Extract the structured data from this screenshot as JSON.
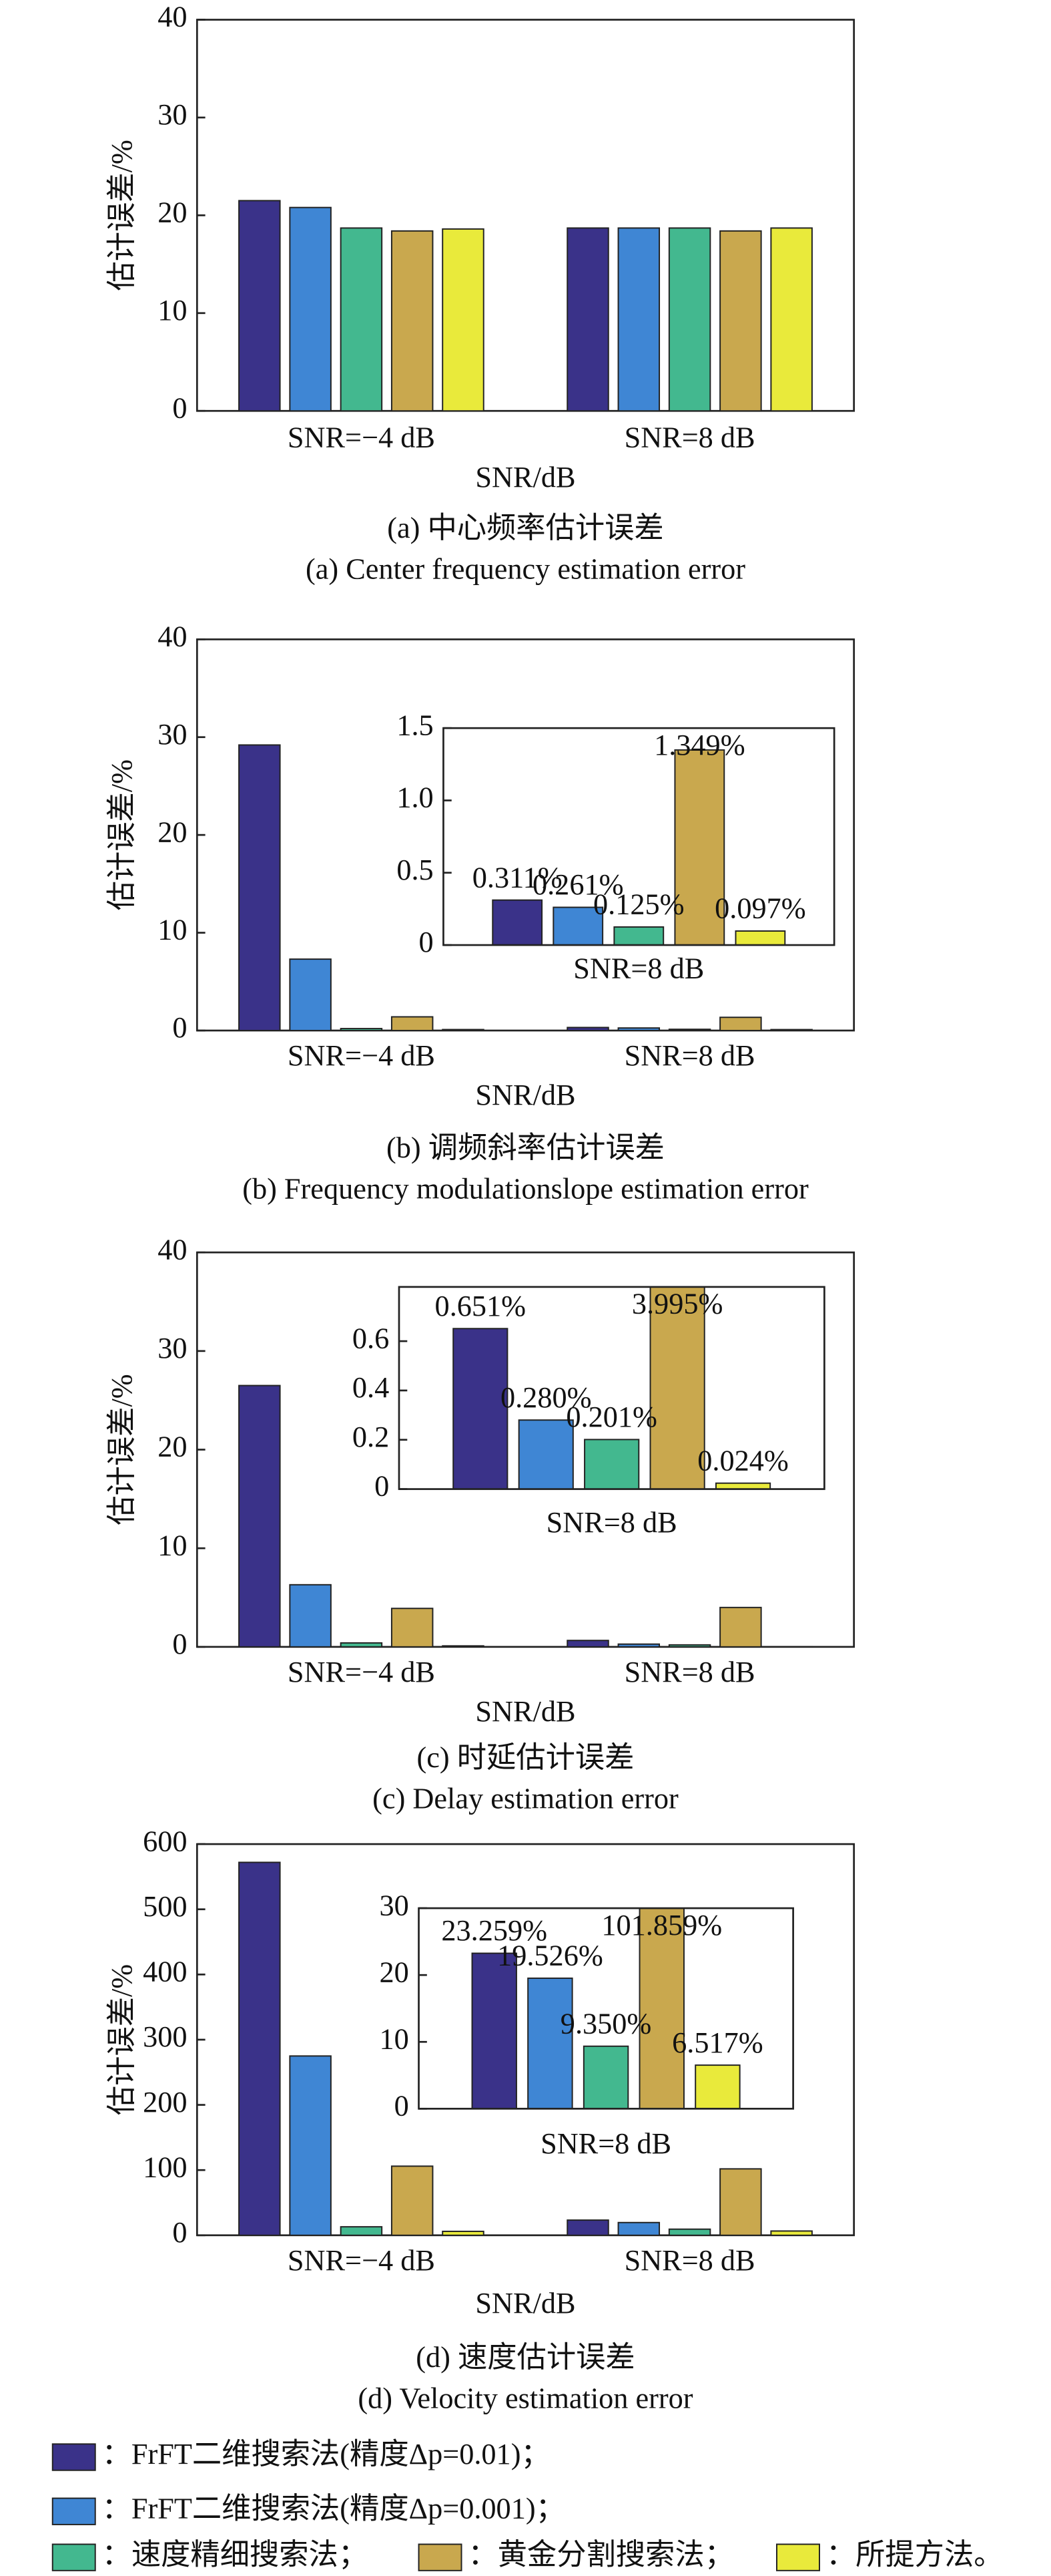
{
  "legend": [
    {
      "name": "：FrFT二维搜索法(精度Δp=0.01)；",
      "color": "#3a3289"
    },
    {
      "name": "：FrFT二维搜索法(精度Δp=0.001)；",
      "color": "#3f86d4"
    },
    {
      "name": "：速度精细搜索法；",
      "color": "#43b88f"
    },
    {
      "name": "：黄金分割搜索法；",
      "color": "#c9a84e"
    },
    {
      "name": "：所提方法。",
      "color": "#e9ea3b"
    }
  ],
  "chart_data": [
    {
      "type": "bar",
      "caption_cn": "(a) 中心频率估计误差",
      "caption_en": "(a) Center frequency estimation error",
      "ylabel": "估计误差/%",
      "xlabel": "SNR/dB",
      "categories": [
        "SNR=−4 dB",
        "SNR=8 dB"
      ],
      "ylim": [
        0,
        40
      ],
      "yticks": [
        0,
        10,
        20,
        30,
        40
      ],
      "series": [
        {
          "values": [
            21.5,
            18.7
          ]
        },
        {
          "values": [
            20.8,
            18.7
          ]
        },
        {
          "values": [
            18.7,
            18.7
          ]
        },
        {
          "values": [
            18.4,
            18.4
          ]
        },
        {
          "values": [
            18.6,
            18.7
          ]
        }
      ]
    },
    {
      "type": "bar",
      "caption_cn": "(b) 调频斜率估计误差",
      "caption_en": "(b) Frequency modulationslope estimation error",
      "ylabel": "估计误差/%",
      "xlabel": "SNR/dB",
      "categories": [
        "SNR=−4 dB",
        "SNR=8 dB"
      ],
      "ylim": [
        0,
        40
      ],
      "yticks": [
        0,
        10,
        20,
        30,
        40
      ],
      "inset": {
        "ylim": [
          0,
          1.5
        ],
        "yticks": [
          0,
          0.5,
          {
            "value": 1,
            "label": "1.0"
          },
          1.5
        ]
      },
      "series": [
        {
          "values": [
            29.2,
            0.311
          ],
          "value_labels": [
            null,
            "0.311%"
          ]
        },
        {
          "values": [
            7.3,
            0.261
          ],
          "value_labels": [
            null,
            "0.261%"
          ]
        },
        {
          "values": [
            0.2,
            0.125
          ],
          "value_labels": [
            null,
            "0.125%"
          ]
        },
        {
          "values": [
            1.4,
            1.349
          ],
          "value_labels": [
            null,
            "1.349%"
          ]
        },
        {
          "values": [
            0.1,
            0.097
          ],
          "value_labels": [
            null,
            "0.097%"
          ]
        }
      ]
    },
    {
      "type": "bar",
      "caption_cn": "(c) 时延估计误差",
      "caption_en": "(c) Delay estimation error",
      "ylabel": "估计误差/%",
      "xlabel": "SNR/dB",
      "categories": [
        "SNR=−4 dB",
        "SNR=8 dB"
      ],
      "ylim": [
        0,
        40
      ],
      "yticks": [
        0,
        10,
        20,
        30,
        40
      ],
      "inset": {
        "ylim": [
          0,
          0.82
        ],
        "yticks": [
          0,
          0.2,
          0.4,
          0.6
        ]
      },
      "series": [
        {
          "values": [
            26.5,
            0.651
          ],
          "value_labels": [
            null,
            "0.651%"
          ]
        },
        {
          "values": [
            6.3,
            0.28
          ],
          "value_labels": [
            null,
            "0.280%"
          ]
        },
        {
          "values": [
            0.4,
            0.201
          ],
          "value_labels": [
            null,
            "0.201%"
          ]
        },
        {
          "values": [
            3.9,
            3.995
          ],
          "value_labels": [
            null,
            "3.995%"
          ]
        },
        {
          "values": [
            0.1,
            0.024
          ],
          "value_labels": [
            null,
            "0.024%"
          ]
        }
      ]
    },
    {
      "type": "bar",
      "caption_cn": "(d) 速度估计误差",
      "caption_en": "(d) Velocity estimation error",
      "ylabel": "估计误差/%",
      "xlabel": "SNR/dB",
      "categories": [
        "SNR=−4 dB",
        "SNR=8 dB"
      ],
      "ylim": [
        0,
        600
      ],
      "yticks": [
        0,
        100,
        200,
        300,
        400,
        500,
        600
      ],
      "inset": {
        "ylim": [
          0,
          30
        ],
        "yticks": [
          0,
          10,
          20,
          30
        ]
      },
      "series": [
        {
          "values": [
            572,
            23.259
          ],
          "value_labels": [
            null,
            "23.259%"
          ]
        },
        {
          "values": [
            275,
            19.526
          ],
          "value_labels": [
            null,
            "19.526%"
          ]
        },
        {
          "values": [
            13,
            9.35
          ],
          "value_labels": [
            null,
            "9.350%"
          ]
        },
        {
          "values": [
            106,
            101.859
          ],
          "value_labels": [
            null,
            "101.859%"
          ]
        },
        {
          "values": [
            6,
            6.517
          ],
          "value_labels": [
            null,
            "6.517%"
          ]
        }
      ]
    }
  ]
}
